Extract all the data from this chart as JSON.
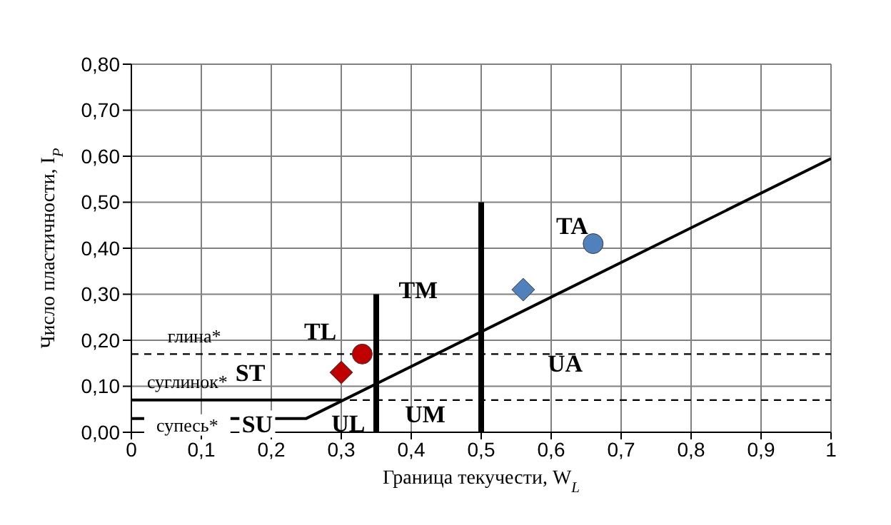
{
  "chart_data": {
    "type": "scatter",
    "xlabel": "Граница текучести, W$_{L}$",
    "ylabel": "Число пластичности, I$_{P}$",
    "xlim": [
      0,
      1
    ],
    "xticks": [
      0,
      {
        "value": 0.1,
        "label": "0,1"
      },
      {
        "value": 0.2,
        "label": "0,2"
      },
      {
        "value": 0.3,
        "label": "0,3"
      },
      {
        "value": 0.4,
        "label": "0,4"
      },
      {
        "value": 0.5,
        "label": "0,5"
      },
      {
        "value": 0.6,
        "label": "0,6"
      },
      {
        "value": 0.7,
        "label": "0,7"
      },
      {
        "value": 0.8,
        "label": "0,8"
      },
      {
        "value": 0.9,
        "label": "0,9"
      },
      1
    ],
    "ylim": [
      0,
      0.8
    ],
    "yticks": [
      {
        "value": 0,
        "label": "0,00"
      },
      {
        "value": 0.1,
        "label": "0,10"
      },
      {
        "value": 0.2,
        "label": "0,20"
      },
      {
        "value": 0.3,
        "label": "0,30"
      },
      {
        "value": 0.4,
        "label": "0,40"
      },
      {
        "value": 0.5,
        "label": "0,50"
      },
      {
        "value": 0.6,
        "label": "0,60"
      },
      {
        "value": 0.7,
        "label": "0,70"
      },
      {
        "value": 0.8,
        "label": "0,80"
      }
    ],
    "grid": true,
    "legend": false,
    "series": [
      {
        "type": "line",
        "color": "#000000",
        "marker": "none",
        "x": [
          0,
          0.25,
          1
        ],
        "values": [
          0.03,
          0.03,
          0.595
        ]
      },
      {
        "type": "line",
        "color": "#000000",
        "marker": "none",
        "x": [
          0,
          0.3
        ],
        "values": [
          0.07,
          0.07
        ]
      },
      {
        "type": "line",
        "color": "#000000",
        "marker": "none",
        "x": [
          0.35,
          0.35
        ],
        "values": [
          0,
          0.3
        ]
      },
      {
        "type": "line",
        "color": "#000000",
        "marker": "none",
        "x": [
          0.5,
          0.5
        ],
        "values": [
          0,
          0.5
        ]
      },
      {
        "type": "scatter",
        "color": "#c00000",
        "marker": "diamond",
        "x": [
          0.3
        ],
        "values": [
          0.13
        ]
      },
      {
        "type": "scatter",
        "color": "#c00000",
        "marker": "circle",
        "x": [
          0.33
        ],
        "values": [
          0.17
        ]
      },
      {
        "type": "scatter",
        "color": "#4f81bd",
        "marker": "diamond",
        "x": [
          0.56
        ],
        "values": [
          0.31
        ]
      },
      {
        "type": "scatter",
        "color": "#4f81bd",
        "marker": "circle",
        "x": [
          0.66
        ],
        "values": [
          0.41
        ]
      }
    ],
    "ref_lines": [
      {
        "axis": "y",
        "value": 0.07,
        "color": "#000000",
        "line_style": "dashed"
      },
      {
        "axis": "y",
        "value": 0.17,
        "color": "#000000",
        "line_style": "dashed"
      }
    ],
    "annotations": [
      "TA",
      "TM",
      "TL",
      "ST",
      "SU",
      "UL",
      "UM",
      "UA",
      "глина*",
      "суглинок*",
      "супесь*"
    ]
  }
}
